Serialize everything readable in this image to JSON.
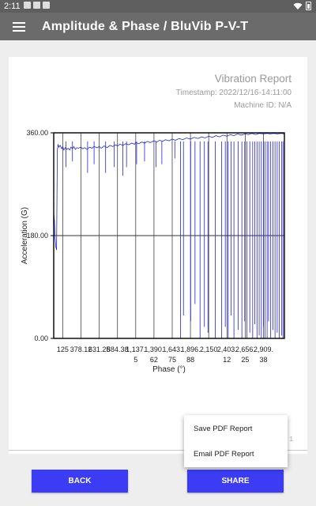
{
  "status_bar": {
    "time": "2:11"
  },
  "app_bar": {
    "title": "Amplitude & Phase / BluVib P-V-T"
  },
  "report": {
    "title": "Vibration Report",
    "timestamp": "Timestamp: 2022/12/16-14:11:00",
    "machine_id": "Machine ID: N/A",
    "page_number": "1"
  },
  "chart_data": {
    "type": "line",
    "ylabel": "Acceleration (G)",
    "xlabel": "Phase (°)",
    "ylim": [
      0,
      360
    ],
    "xlim": [
      0,
      3200
    ],
    "y_ticks": [
      "360.00",
      "180.00",
      "0.00"
    ],
    "x_ticks": [
      {
        "value": 125,
        "line1": "125",
        "line2": ""
      },
      {
        "value": 378.12,
        "line1": "378.12",
        "line2": ""
      },
      {
        "value": 631.25,
        "line1": "631.25",
        "line2": ""
      },
      {
        "value": 884.38,
        "line1": "884.38",
        "line2": ""
      },
      {
        "value": 1137.5,
        "line1": "1,137.",
        "line2": "5"
      },
      {
        "value": 1390.62,
        "line1": "1,390.",
        "line2": "62"
      },
      {
        "value": 1643.75,
        "line1": "1,643.",
        "line2": "75"
      },
      {
        "value": 1896.88,
        "line1": "1,896.",
        "line2": "88"
      },
      {
        "value": 2150,
        "line1": "2,150",
        "line2": ""
      },
      {
        "value": 2403.12,
        "line1": "2,403.",
        "line2": "12"
      },
      {
        "value": 2656.25,
        "line1": "2,656.",
        "line2": "25"
      },
      {
        "value": 2909.38,
        "line1": "2,909.",
        "line2": "38"
      }
    ],
    "series": [
      {
        "color": "#2424d8",
        "points": [
          [
            0,
            220
          ],
          [
            10,
            205
          ],
          [
            20,
            175
          ],
          [
            30,
            160
          ],
          [
            40,
            155
          ],
          [
            50,
            330
          ],
          [
            60,
            340
          ],
          [
            70,
            335
          ],
          [
            90,
            338
          ],
          [
            110,
            332
          ],
          [
            125,
            336
          ],
          [
            140,
            330
          ],
          [
            160,
            334
          ],
          [
            180,
            331
          ],
          [
            200,
            333
          ],
          [
            220,
            330
          ],
          [
            240,
            335
          ],
          [
            260,
            332
          ],
          [
            280,
            336
          ],
          [
            300,
            331
          ],
          [
            320,
            334
          ],
          [
            340,
            333
          ],
          [
            378,
            335
          ],
          [
            400,
            332
          ],
          [
            430,
            334
          ],
          [
            460,
            331
          ],
          [
            500,
            335
          ],
          [
            530,
            333
          ],
          [
            560,
            336
          ],
          [
            600,
            334
          ],
          [
            631,
            336
          ],
          [
            660,
            333
          ],
          [
            700,
            337
          ],
          [
            740,
            334
          ],
          [
            780,
            338
          ],
          [
            820,
            336
          ],
          [
            860,
            339
          ],
          [
            884,
            337
          ],
          [
            920,
            340
          ],
          [
            960,
            338
          ],
          [
            1000,
            341
          ],
          [
            1040,
            339
          ],
          [
            1080,
            342
          ],
          [
            1120,
            340
          ],
          [
            1137,
            343
          ],
          [
            1180,
            341
          ],
          [
            1220,
            344
          ],
          [
            1260,
            342
          ],
          [
            1300,
            345
          ],
          [
            1340,
            343
          ],
          [
            1390,
            346
          ],
          [
            1430,
            344
          ],
          [
            1470,
            347
          ],
          [
            1510,
            345
          ],
          [
            1550,
            348
          ],
          [
            1600,
            346
          ],
          [
            1643,
            349
          ],
          [
            1690,
            347
          ],
          [
            1740,
            350
          ],
          [
            1790,
            348
          ],
          [
            1840,
            351
          ],
          [
            1896,
            349
          ],
          [
            1950,
            352
          ],
          [
            2000,
            350
          ],
          [
            2050,
            353
          ],
          [
            2100,
            351
          ],
          [
            2150,
            354
          ],
          [
            2200,
            352
          ],
          [
            2250,
            355
          ],
          [
            2300,
            353
          ],
          [
            2350,
            356
          ],
          [
            2403,
            354
          ],
          [
            2450,
            357
          ],
          [
            2500,
            355
          ],
          [
            2550,
            358
          ],
          [
            2600,
            356
          ],
          [
            2656,
            358
          ],
          [
            2700,
            357
          ],
          [
            2750,
            359
          ],
          [
            2800,
            357
          ],
          [
            2850,
            359
          ],
          [
            2909,
            358
          ],
          [
            2960,
            359
          ],
          [
            3000,
            358
          ],
          [
            3050,
            359
          ],
          [
            3100,
            358
          ],
          [
            3150,
            359
          ],
          [
            3200,
            358
          ]
        ],
        "drops": [
          [
            170,
            300
          ],
          [
            260,
            310
          ],
          [
            470,
            290
          ],
          [
            560,
            305
          ],
          [
            720,
            290
          ],
          [
            840,
            300
          ],
          [
            960,
            285
          ],
          [
            1010,
            300
          ],
          [
            1150,
            305
          ],
          [
            1260,
            310
          ],
          [
            1420,
            300
          ],
          [
            1500,
            305
          ],
          [
            1680,
            315
          ],
          [
            1760,
            0
          ],
          [
            1800,
            40
          ],
          [
            1900,
            30
          ],
          [
            1960,
            60
          ],
          [
            2030,
            0
          ],
          [
            2090,
            20
          ],
          [
            2140,
            10
          ],
          [
            2240,
            0
          ],
          [
            2330,
            0
          ],
          [
            2380,
            20
          ],
          [
            2420,
            0
          ],
          [
            2460,
            40
          ],
          [
            2500,
            0
          ],
          [
            2560,
            15
          ],
          [
            2610,
            0
          ],
          [
            2650,
            30
          ],
          [
            2680,
            0
          ],
          [
            2720,
            10
          ],
          [
            2760,
            0
          ],
          [
            2790,
            25
          ],
          [
            2820,
            0
          ],
          [
            2850,
            5
          ],
          [
            2880,
            0
          ],
          [
            2910,
            20
          ],
          [
            2930,
            0
          ],
          [
            2960,
            0
          ],
          [
            2980,
            30
          ],
          [
            3010,
            0
          ],
          [
            3040,
            15
          ],
          [
            3070,
            0
          ],
          [
            3100,
            10
          ],
          [
            3130,
            0
          ],
          [
            3160,
            5
          ],
          [
            3180,
            0
          ]
        ]
      }
    ],
    "grid": true
  },
  "actions": {
    "back_label": "BACK",
    "share_label": "SHARE"
  },
  "share_menu": {
    "items": [
      "Save PDF Report",
      "Email PDF Report"
    ]
  }
}
